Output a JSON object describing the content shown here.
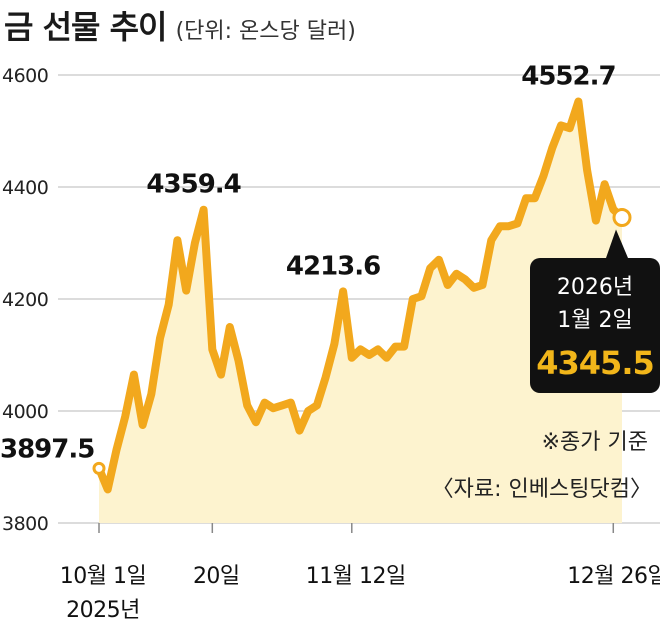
{
  "title": "금 선물 추이",
  "unit": "(단위: 온스당 달러)",
  "colors": {
    "line": "#f2a81d",
    "fill": "#fdf3cf",
    "callout_bg": "#111111",
    "callout_value": "#f2b61a",
    "grid": "#c8c8c8"
  },
  "chart_data": {
    "type": "area",
    "title": "금 선물 추이",
    "ylabel": "온스당 달러",
    "ylim": [
      3800,
      4600
    ],
    "yticks": [
      3800,
      4000,
      4200,
      4400,
      4600
    ],
    "xtick_labels": [
      "10월 1일\n2025년",
      "20일",
      "11월 12일",
      "12월 26일"
    ],
    "xtick_indices": [
      0,
      13,
      29,
      59
    ],
    "grid": true,
    "series": [
      {
        "values": [
          3897.5,
          3860,
          3930,
          3990,
          4065,
          3975,
          4030,
          4130,
          4190,
          4305,
          4215,
          4300,
          4359.4,
          4110,
          4065,
          4150,
          4090,
          4010,
          3980,
          4015,
          4005,
          4010,
          4015,
          3965,
          4000,
          4010,
          4060,
          4120,
          4213.6,
          4095,
          4110,
          4100,
          4110,
          4095,
          4115,
          4115,
          4200,
          4205,
          4255,
          4270,
          4225,
          4245,
          4235,
          4220,
          4225,
          4305,
          4330,
          4330,
          4335,
          4380,
          4380,
          4420,
          4470,
          4510,
          4505,
          4552.7,
          4430,
          4340,
          4405,
          4360,
          4345.5
        ]
      }
    ],
    "annotations": [
      {
        "label": "4359.4",
        "index": 12
      },
      {
        "label": "4213.6",
        "index": 28
      },
      {
        "label": "4552.7",
        "index": 55
      },
      {
        "label": "3897.5",
        "index": 0
      }
    ],
    "last_point": {
      "date_line1": "2026년",
      "date_line2": "1월 2일",
      "value": "4345.5"
    },
    "note": "※종가 기준",
    "source": "〈자료: 인베스팅닷컴〉"
  }
}
